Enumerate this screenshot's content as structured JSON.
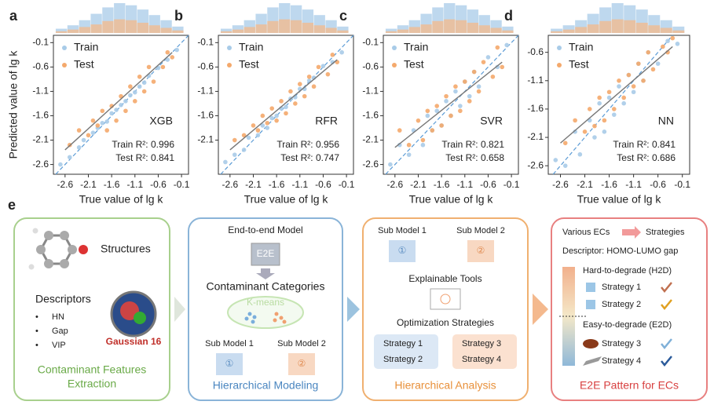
{
  "chart_data": [
    {
      "type": "scatter",
      "panel": "a",
      "model": "XGB",
      "annotations": [
        "Train R²: 0.996",
        "Test R²: 0.841"
      ],
      "x_label": "True value of lg k",
      "y_label": "Predicted value of lg k",
      "xlim": [
        -2.85,
        0.05
      ],
      "ylim": [
        -2.8,
        0.05
      ],
      "xticks": [
        -2.6,
        -2.1,
        -1.6,
        -1.1,
        -0.6,
        -0.1
      ],
      "yticks": [
        -2.6,
        -2.1,
        -1.6,
        -1.1,
        -0.6,
        -0.1
      ],
      "series": [
        {
          "name": "Train",
          "color": "#a8cbe8",
          "x": [
            -2.7,
            -2.5,
            -2.3,
            -2.2,
            -2.0,
            -1.9,
            -1.8,
            -1.7,
            -1.6,
            -1.5,
            -1.4,
            -1.3,
            -1.2,
            -1.1,
            -1.0,
            -0.9,
            -0.8,
            -0.6,
            -0.4,
            -0.2
          ],
          "values": [
            -2.6,
            -2.45,
            -2.25,
            -2.1,
            -1.95,
            -1.85,
            -1.75,
            -1.72,
            -1.55,
            -1.48,
            -1.38,
            -1.3,
            -1.18,
            -1.12,
            -1.0,
            -0.92,
            -0.78,
            -0.62,
            -0.45,
            -0.25
          ]
        },
        {
          "name": "Test",
          "color": "#f4a96c",
          "x": [
            -2.5,
            -2.3,
            -2.1,
            -2.0,
            -1.9,
            -1.8,
            -1.7,
            -1.6,
            -1.5,
            -1.4,
            -1.3,
            -1.2,
            -1.1,
            -1.0,
            -0.9,
            -0.8,
            -0.7,
            -0.5,
            -0.4,
            -0.3
          ],
          "values": [
            -2.2,
            -1.9,
            -2.0,
            -1.7,
            -1.8,
            -1.5,
            -1.9,
            -1.4,
            -1.7,
            -1.2,
            -1.5,
            -1.0,
            -1.3,
            -0.8,
            -1.1,
            -0.6,
            -0.9,
            -0.6,
            -0.3,
            -0.4
          ]
        }
      ],
      "fit_x": [
        -2.6,
        -0.3
      ],
      "fit_y": [
        -2.3,
        -0.3
      ],
      "bins": [
        -2.8,
        -2.55,
        -2.3,
        -2.05,
        -1.8,
        -1.55,
        -1.3,
        -1.05,
        -0.8,
        -0.55,
        -0.3,
        -0.05
      ],
      "train_counts": [
        10,
        18,
        30,
        45,
        60,
        70,
        65,
        55,
        42,
        30,
        15
      ],
      "test_counts": [
        4,
        8,
        14,
        20,
        28,
        32,
        30,
        24,
        18,
        12,
        6
      ]
    },
    {
      "type": "scatter",
      "panel": "b",
      "model": "RFR",
      "annotations": [
        "Train R²: 0.956",
        "Test R²: 0.747"
      ],
      "x_label": "True value of lg k",
      "xlim": [
        -2.85,
        0.05
      ],
      "ylim": [
        -2.8,
        0.05
      ],
      "xticks": [
        -2.6,
        -2.1,
        -1.6,
        -1.1,
        -0.6,
        -0.1
      ],
      "yticks": [
        -2.1,
        -1.6,
        -1.1,
        -0.6,
        -0.1
      ],
      "series": [
        {
          "name": "Train",
          "color": "#a8cbe8",
          "x": [
            -2.7,
            -2.5,
            -2.3,
            -2.2,
            -2.0,
            -1.9,
            -1.8,
            -1.7,
            -1.6,
            -1.5,
            -1.4,
            -1.3,
            -1.2,
            -1.1,
            -1.0,
            -0.9,
            -0.8,
            -0.6,
            -0.4,
            -0.2
          ],
          "values": [
            -2.55,
            -2.4,
            -2.3,
            -2.05,
            -2.0,
            -1.8,
            -1.85,
            -1.65,
            -1.6,
            -1.45,
            -1.42,
            -1.25,
            -1.22,
            -1.05,
            -1.05,
            -0.88,
            -0.82,
            -0.58,
            -0.5,
            -0.3
          ]
        },
        {
          "name": "Test",
          "color": "#f4a96c",
          "x": [
            -2.5,
            -2.3,
            -2.1,
            -2.0,
            -1.9,
            -1.8,
            -1.7,
            -1.6,
            -1.5,
            -1.4,
            -1.3,
            -1.2,
            -1.1,
            -1.0,
            -0.9,
            -0.8,
            -0.7,
            -0.5,
            -0.4,
            -0.3
          ],
          "values": [
            -2.1,
            -2.0,
            -1.8,
            -1.9,
            -1.6,
            -1.75,
            -1.45,
            -1.7,
            -1.3,
            -1.55,
            -1.1,
            -1.35,
            -0.95,
            -1.2,
            -0.8,
            -1.0,
            -0.6,
            -0.75,
            -0.35,
            -0.5
          ]
        }
      ],
      "fit_x": [
        -2.6,
        -0.3
      ],
      "fit_y": [
        -2.3,
        -0.45
      ],
      "bins": [
        -2.8,
        -2.55,
        -2.3,
        -2.05,
        -1.8,
        -1.55,
        -1.3,
        -1.05,
        -0.8,
        -0.55,
        -0.3,
        -0.05
      ],
      "train_counts": [
        10,
        18,
        30,
        45,
        60,
        70,
        65,
        55,
        42,
        30,
        15
      ],
      "test_counts": [
        4,
        8,
        14,
        20,
        28,
        32,
        30,
        24,
        18,
        12,
        6
      ]
    },
    {
      "type": "scatter",
      "panel": "c",
      "model": "SVR",
      "annotations": [
        "Train R²: 0.821",
        "Test R²: 0.658"
      ],
      "x_label": "True value of lg k",
      "xlim": [
        -2.85,
        0.05
      ],
      "ylim": [
        -2.8,
        0.05
      ],
      "xticks": [
        -2.6,
        -2.1,
        -1.6,
        -1.1,
        -0.6,
        -0.1
      ],
      "yticks": [
        -2.6,
        -2.1,
        -1.6,
        -1.1,
        -0.6,
        -0.1
      ],
      "series": [
        {
          "name": "Train",
          "color": "#a8cbe8",
          "x": [
            -2.7,
            -2.5,
            -2.3,
            -2.2,
            -2.0,
            -1.9,
            -1.8,
            -1.7,
            -1.6,
            -1.5,
            -1.4,
            -1.3,
            -1.2,
            -1.1,
            -1.0,
            -0.9,
            -0.8,
            -0.6,
            -0.4,
            -0.2
          ],
          "values": [
            -2.6,
            -2.2,
            -2.4,
            -1.9,
            -2.2,
            -1.6,
            -1.9,
            -1.5,
            -1.8,
            -1.3,
            -1.6,
            -1.1,
            -1.4,
            -0.9,
            -1.2,
            -0.7,
            -1.0,
            -0.4,
            -0.6,
            -0.15
          ]
        },
        {
          "name": "Test",
          "color": "#f4a96c",
          "x": [
            -2.5,
            -2.3,
            -2.1,
            -2.0,
            -1.9,
            -1.8,
            -1.7,
            -1.6,
            -1.5,
            -1.4,
            -1.3,
            -1.2,
            -1.1,
            -1.0,
            -0.9,
            -0.8,
            -0.7,
            -0.5,
            -0.4,
            -0.3
          ],
          "values": [
            -1.9,
            -2.2,
            -1.7,
            -2.1,
            -1.5,
            -1.9,
            -1.4,
            -1.8,
            -1.2,
            -1.6,
            -1.0,
            -1.5,
            -0.9,
            -1.3,
            -0.7,
            -1.1,
            -0.5,
            -0.8,
            -0.2,
            -0.6
          ]
        }
      ],
      "fit_x": [
        -2.6,
        -0.3
      ],
      "fit_y": [
        -2.25,
        -0.5
      ],
      "bins": [
        -2.8,
        -2.55,
        -2.3,
        -2.05,
        -1.8,
        -1.55,
        -1.3,
        -1.05,
        -0.8,
        -0.55,
        -0.3,
        -0.05
      ],
      "train_counts": [
        10,
        18,
        30,
        45,
        60,
        70,
        65,
        55,
        42,
        30,
        15
      ],
      "test_counts": [
        4,
        8,
        14,
        20,
        28,
        32,
        30,
        24,
        18,
        12,
        6
      ]
    },
    {
      "type": "scatter",
      "panel": "d",
      "model": "NN",
      "annotations": [
        "Train R²: 0.841",
        "Test R²: 0.686"
      ],
      "x_label": "True value of lg k",
      "xlim": [
        -2.85,
        0.05
      ],
      "ylim": [
        -2.75,
        -0.3
      ],
      "xticks": [
        -2.6,
        -2.1,
        -1.6,
        -1.1,
        -0.6,
        -0.1
      ],
      "yticks": [
        -2.6,
        -2.1,
        -1.6,
        -1.1,
        -0.6
      ],
      "series": [
        {
          "name": "Train",
          "color": "#a8cbe8",
          "x": [
            -2.7,
            -2.5,
            -2.3,
            -2.2,
            -2.0,
            -1.9,
            -1.8,
            -1.7,
            -1.6,
            -1.5,
            -1.4,
            -1.3,
            -1.2,
            -1.1,
            -1.0,
            -0.9,
            -0.8,
            -0.6,
            -0.4,
            -0.2
          ],
          "values": [
            -2.5,
            -2.6,
            -2.0,
            -2.4,
            -1.8,
            -2.1,
            -1.5,
            -2.0,
            -1.4,
            -1.7,
            -1.2,
            -1.5,
            -1.0,
            -1.3,
            -0.8,
            -1.1,
            -0.6,
            -0.8,
            -0.4,
            -0.45
          ]
        },
        {
          "name": "Test",
          "color": "#f4a96c",
          "x": [
            -2.5,
            -2.3,
            -2.1,
            -2.0,
            -1.9,
            -1.8,
            -1.7,
            -1.6,
            -1.5,
            -1.4,
            -1.3,
            -1.2,
            -1.1,
            -1.0,
            -0.9,
            -0.8,
            -0.7,
            -0.5,
            -0.4,
            -0.3
          ],
          "values": [
            -2.2,
            -1.8,
            -2.0,
            -1.6,
            -1.9,
            -1.4,
            -1.8,
            -1.3,
            -1.6,
            -1.1,
            -1.4,
            -1.0,
            -1.2,
            -0.8,
            -1.1,
            -0.6,
            -0.9,
            -0.5,
            -0.6,
            -0.35
          ]
        }
      ],
      "fit_x": [
        -2.6,
        -0.3
      ],
      "fit_y": [
        -2.2,
        -0.5
      ],
      "bins": [
        -2.8,
        -2.55,
        -2.3,
        -2.05,
        -1.8,
        -1.55,
        -1.3,
        -1.05,
        -0.8,
        -0.55,
        -0.3,
        -0.05
      ],
      "train_counts": [
        10,
        18,
        30,
        45,
        60,
        70,
        65,
        55,
        42,
        30,
        15
      ],
      "test_counts": [
        4,
        8,
        14,
        20,
        28,
        32,
        30,
        24,
        18,
        12,
        6
      ]
    }
  ],
  "diagram": {
    "label": "e",
    "features": {
      "structures": "Structures",
      "descriptors": "Descriptors",
      "items": [
        "HN",
        "Gap",
        "VIP"
      ],
      "software": "Gaussian 16",
      "title_lines": [
        "Contaminant  Features",
        "Extraction"
      ]
    },
    "modeling": {
      "top": "End-to-end Model",
      "cube": "E2E",
      "categories": "Contaminant Categories",
      "cluster": "K-means",
      "sub": [
        "Sub Model 1",
        "Sub Model 2"
      ],
      "sub_marks": [
        "①",
        "②"
      ],
      "title": "Hierarchical Modeling"
    },
    "analysis": {
      "sub": [
        "Sub Model 1",
        "Sub Model 2"
      ],
      "sub_marks": [
        "①",
        "②"
      ],
      "tools": "Explainable Tools",
      "optimization": "Optimization Strategies",
      "strategies": [
        "Strategy 1",
        "Strategy 2",
        "Strategy 3",
        "Strategy 4"
      ],
      "title": "Hierarchical Analysis"
    },
    "pattern": {
      "ecs": "Various ECs",
      "target": "Strategies",
      "descriptor": "Descriptor: HOMO-LUMO gap",
      "h2d": "Hard-to-degrade (H2D)",
      "e2d": "Easy-to-degrade (E2D)",
      "strategies": [
        "Strategy 1",
        "Strategy 2",
        "Strategy 3",
        "Strategy 4"
      ],
      "title": "E2E Pattern for ECs"
    }
  }
}
